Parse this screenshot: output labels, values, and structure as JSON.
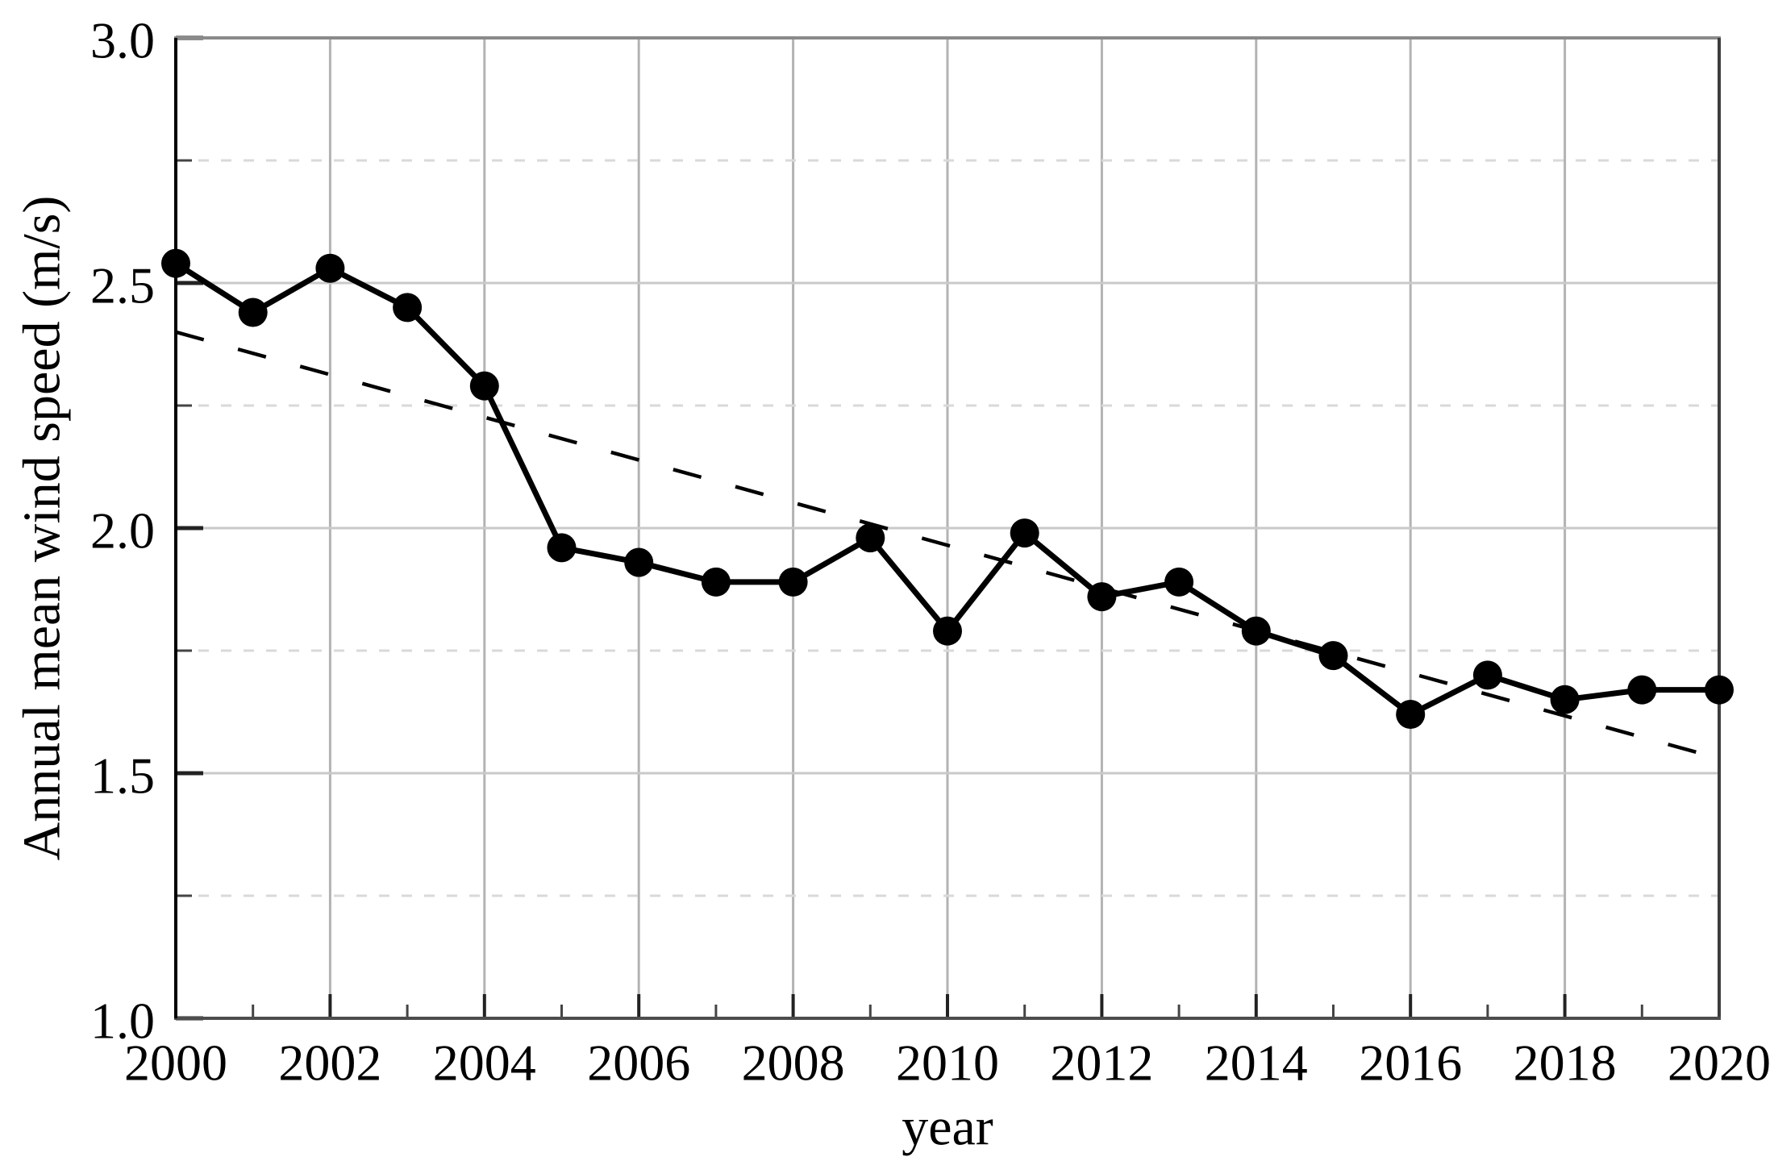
{
  "chart_data": {
    "type": "line",
    "title": "",
    "xlabel": "year",
    "ylabel": "Annual mean wind speed (m/s)",
    "x": [
      2000,
      2001,
      2002,
      2003,
      2004,
      2005,
      2006,
      2007,
      2008,
      2009,
      2010,
      2011,
      2012,
      2013,
      2014,
      2015,
      2016,
      2017,
      2018,
      2019,
      2020
    ],
    "series": [
      {
        "name": "annual-mean-wind-speed",
        "marker": "filled-circle",
        "line_style": "solid",
        "values": [
          2.54,
          2.44,
          2.53,
          2.45,
          2.29,
          1.96,
          1.93,
          1.89,
          1.89,
          1.98,
          1.79,
          1.99,
          1.86,
          1.89,
          1.79,
          1.74,
          1.62,
          1.7,
          1.65,
          1.67,
          1.67
        ]
      }
    ],
    "trend_line": {
      "name": "linear-trend",
      "line_style": "dashed",
      "x": [
        2000,
        2020
      ],
      "values": [
        2.4,
        1.53
      ]
    },
    "xlim": [
      2000,
      2020
    ],
    "ylim": [
      1.0,
      3.0
    ],
    "x_major_ticks": [
      2000,
      2002,
      2004,
      2006,
      2008,
      2010,
      2012,
      2014,
      2016,
      2018,
      2020
    ],
    "x_minor_ticks": [
      2001,
      2003,
      2005,
      2007,
      2009,
      2011,
      2013,
      2015,
      2017,
      2019
    ],
    "x_tick_labels": [
      "2000",
      "2002",
      "2004",
      "2006",
      "2008",
      "2010",
      "2012",
      "2014",
      "2016",
      "2018",
      "2020"
    ],
    "y_major_ticks": [
      1.0,
      1.5,
      2.0,
      2.5,
      3.0
    ],
    "y_minor_ticks": [
      1.25,
      1.75,
      2.25,
      2.75
    ],
    "y_tick_labels": [
      "1.0",
      "1.5",
      "2.0",
      "2.5",
      "3.0"
    ],
    "grid": {
      "vertical_at_x_major": true,
      "horizontal_solid_at_y_major": true,
      "horizontal_dashed_at_y_minor": true
    },
    "legend": "none",
    "colors": {
      "series": "#000000",
      "trend": "#000000",
      "grid_vertical": "#b3b3b3",
      "grid_horizontal_major": "#c9c9c9",
      "grid_horizontal_minor": "#d9d9d9",
      "axis_left": "#000000",
      "border_top": "#8a8a8a",
      "border_right": "#3d3d3d",
      "border_bottom": "#4d4d4d",
      "tick_major": "#222222",
      "tick_minor": "#444444",
      "text": "#000000",
      "background": "#ffffff"
    }
  }
}
